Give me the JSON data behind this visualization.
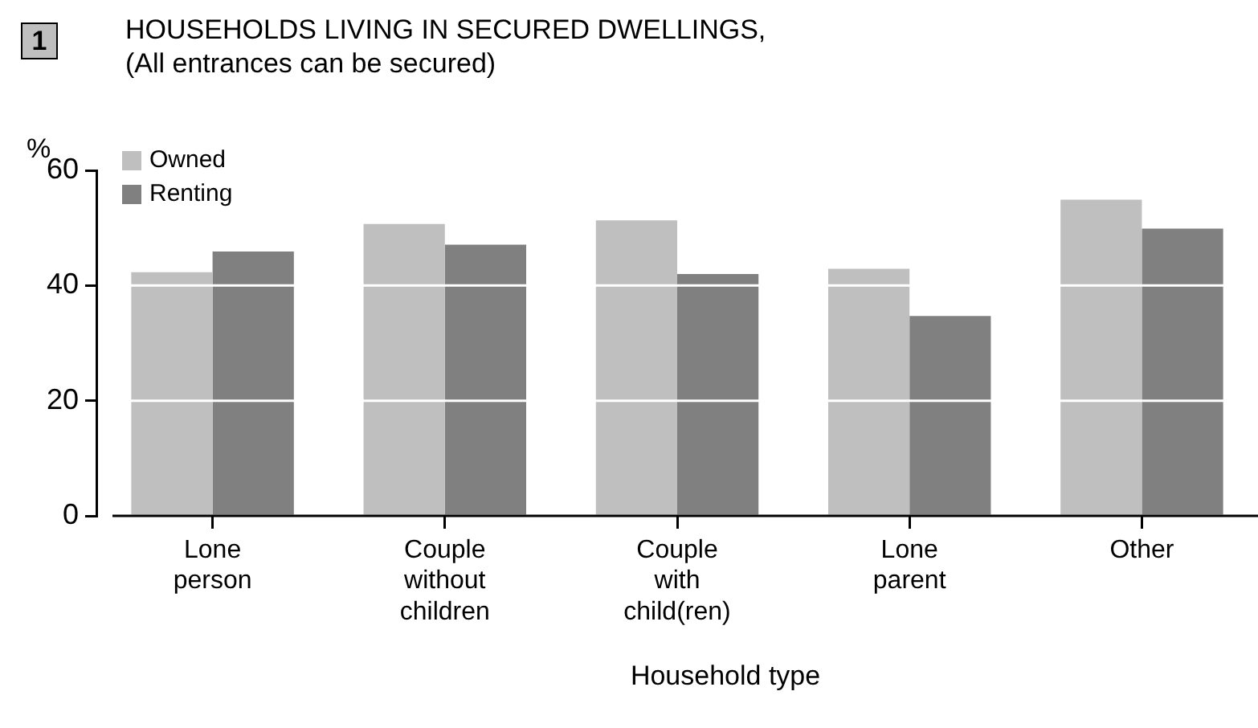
{
  "chart_data": {
    "type": "bar",
    "title": "HOUSEHOLDS LIVING IN SECURED DWELLINGS,",
    "subtitle": "(All entrances can be secured)",
    "ylabel": "%",
    "xlabel": "Household type",
    "annotations": [
      "1"
    ],
    "categories": [
      "Lone\nperson",
      "Couple\nwithout\nchildren",
      "Couple\nwith\nchild(ren)",
      "Lone\nparent",
      "Other"
    ],
    "series": [
      {
        "name": "Owned",
        "color": "#bfbfbf",
        "values": [
          42.3,
          50.7,
          51.3,
          42.9,
          54.9
        ]
      },
      {
        "name": "Renting",
        "color": "#808080",
        "values": [
          45.9,
          47.1,
          42.0,
          34.7,
          49.9
        ]
      }
    ],
    "ylim": [
      0,
      60
    ],
    "yticks": [
      0,
      20,
      40,
      60
    ],
    "grid": "y",
    "legend": "top left"
  }
}
